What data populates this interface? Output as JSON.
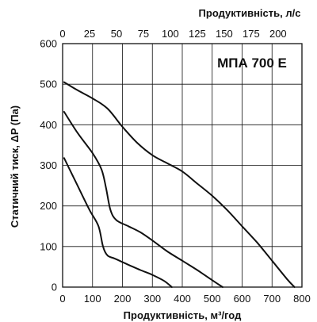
{
  "chart_data": {
    "type": "line",
    "title": "МПА 700 Е",
    "xlabel": "Продуктивність, м³/год",
    "ylabel": "Статичний тиск, ΔP (Па)",
    "x2label": "Продуктивність, л/с",
    "xlim": [
      0,
      800
    ],
    "ylim": [
      0,
      600
    ],
    "x2lim": [
      0,
      222.2
    ],
    "x_ticks": [
      "0",
      "100",
      "200",
      "300",
      "400",
      "500",
      "600",
      "700",
      "800"
    ],
    "y_ticks": [
      "0",
      "100",
      "200",
      "300",
      "400",
      "500",
      "600"
    ],
    "x2_ticks": [
      "0",
      "25",
      "50",
      "75",
      "100",
      "125",
      "150",
      "175",
      "200"
    ],
    "grid": true,
    "series": [
      {
        "x": [
          5,
          50,
          100,
          150,
          200,
          250,
          300,
          350,
          400,
          450,
          500,
          550,
          600,
          650,
          700,
          750,
          775
        ],
        "y": [
          505,
          485,
          465,
          440,
          395,
          355,
          325,
          305,
          285,
          255,
          225,
          190,
          150,
          110,
          65,
          20,
          0
        ]
      },
      {
        "x": [
          5,
          50,
          100,
          130,
          145,
          160,
          180,
          220,
          260,
          300,
          350,
          400,
          450,
          500,
          535
        ],
        "y": [
          432,
          380,
          330,
          290,
          245,
          190,
          165,
          150,
          135,
          115,
          88,
          65,
          42,
          17,
          0
        ]
      },
      {
        "x": [
          5,
          50,
          90,
          120,
          135,
          150,
          175,
          220,
          260,
          300,
          340,
          365
        ],
        "y": [
          318,
          250,
          190,
          150,
          100,
          78,
          70,
          55,
          42,
          30,
          15,
          0
        ]
      }
    ]
  }
}
